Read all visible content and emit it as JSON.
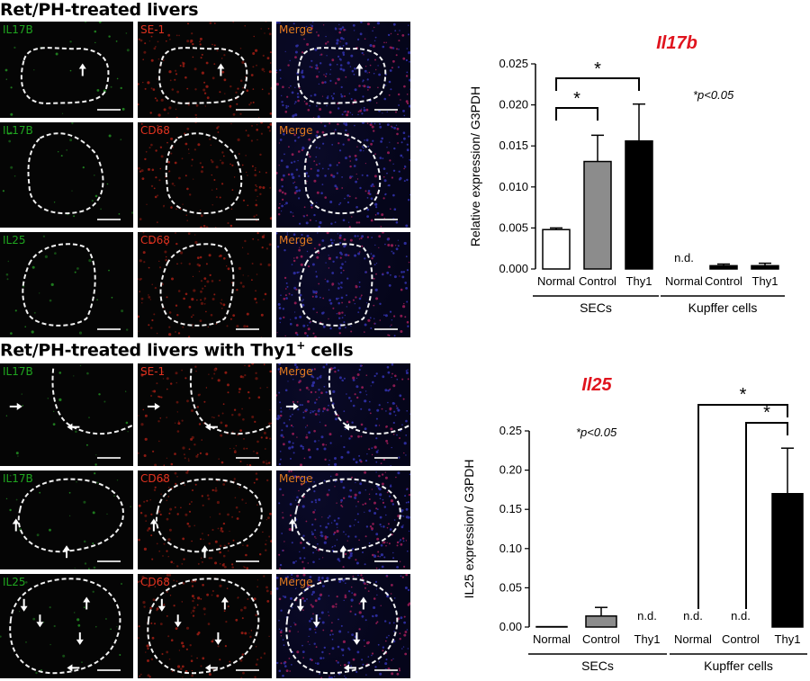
{
  "figure": {
    "top_title": "Ret/PH-treated livers",
    "bottom_title_main": "Ret/PH-treated livers with Thy1",
    "bottom_title_sup": "+",
    "bottom_title_tail": " cells",
    "colors": {
      "green_label": "#1fa51f",
      "red_label": "#e0321f",
      "merge_label": "#e07a1f",
      "chart_title": "#e0141e"
    }
  },
  "micrographs": [
    {
      "label": "IL17B",
      "channel": "green"
    },
    {
      "label": "SE-1",
      "channel": "red"
    },
    {
      "label": "Merge",
      "channel": "merge"
    },
    {
      "label": "IL17B",
      "channel": "green"
    },
    {
      "label": "CD68",
      "channel": "red"
    },
    {
      "label": "Merge",
      "channel": "merge"
    },
    {
      "label": "IL25",
      "channel": "green"
    },
    {
      "label": "CD68",
      "channel": "red"
    },
    {
      "label": "Merge",
      "channel": "merge"
    },
    {
      "label": "IL17B",
      "channel": "green"
    },
    {
      "label": "SE-1",
      "channel": "red"
    },
    {
      "label": "Merge",
      "channel": "merge"
    },
    {
      "label": "IL17B",
      "channel": "green"
    },
    {
      "label": "CD68",
      "channel": "red"
    },
    {
      "label": "Merge",
      "channel": "merge"
    },
    {
      "label": "IL25",
      "channel": "green"
    },
    {
      "label": "CD68",
      "channel": "red"
    },
    {
      "label": "Merge",
      "channel": "merge"
    }
  ],
  "chart_data": [
    {
      "type": "bar",
      "title": "Il17b",
      "ylabel": "Relative expression/ G3PDH",
      "ylim": [
        0,
        0.025
      ],
      "yticks": [
        "0.000",
        "0.005",
        "0.010",
        "0.015",
        "0.020",
        "0.025"
      ],
      "categories": [
        "Normal",
        "Control",
        "Thy1",
        "Normal",
        "Control",
        "Thy1"
      ],
      "values": [
        0.0048,
        0.0131,
        0.0156,
        0,
        0.0004,
        0.0004
      ],
      "errors": [
        0.0002,
        0.0032,
        0.0045,
        0,
        0.0002,
        0.0003
      ],
      "fills": [
        "#ffffff",
        "#8c8c8c",
        "#000000",
        "#000000",
        "#000000",
        "#000000"
      ],
      "groups": [
        "SECs",
        "Kupffer cells"
      ],
      "annotation": "*p<0.05",
      "nd_labels": [
        "n.d."
      ],
      "significance": [
        "*",
        "*"
      ]
    },
    {
      "type": "bar",
      "title": "Il25",
      "ylabel": "IL25 expression/ G3PDH",
      "ylim": [
        0,
        0.25
      ],
      "yticks": [
        "0.00",
        "0.05",
        "0.10",
        "0.15",
        "0.20",
        "0.25"
      ],
      "categories": [
        "Normal",
        "Control",
        "Thy1",
        "Normal",
        "Control",
        "Thy1"
      ],
      "values": [
        0.0005,
        0.014,
        0,
        0,
        0,
        0.17
      ],
      "errors": [
        0,
        0.011,
        0,
        0,
        0,
        0.058
      ],
      "fills": [
        "#ffffff",
        "#8c8c8c",
        "#000000",
        "#000000",
        "#000000",
        "#000000"
      ],
      "groups": [
        "SECs",
        "Kupffer cells"
      ],
      "annotation": "*p<0.05",
      "nd_labels": [
        "n.d.",
        "n.d.",
        "n.d."
      ],
      "significance": [
        "*",
        "*"
      ]
    }
  ]
}
